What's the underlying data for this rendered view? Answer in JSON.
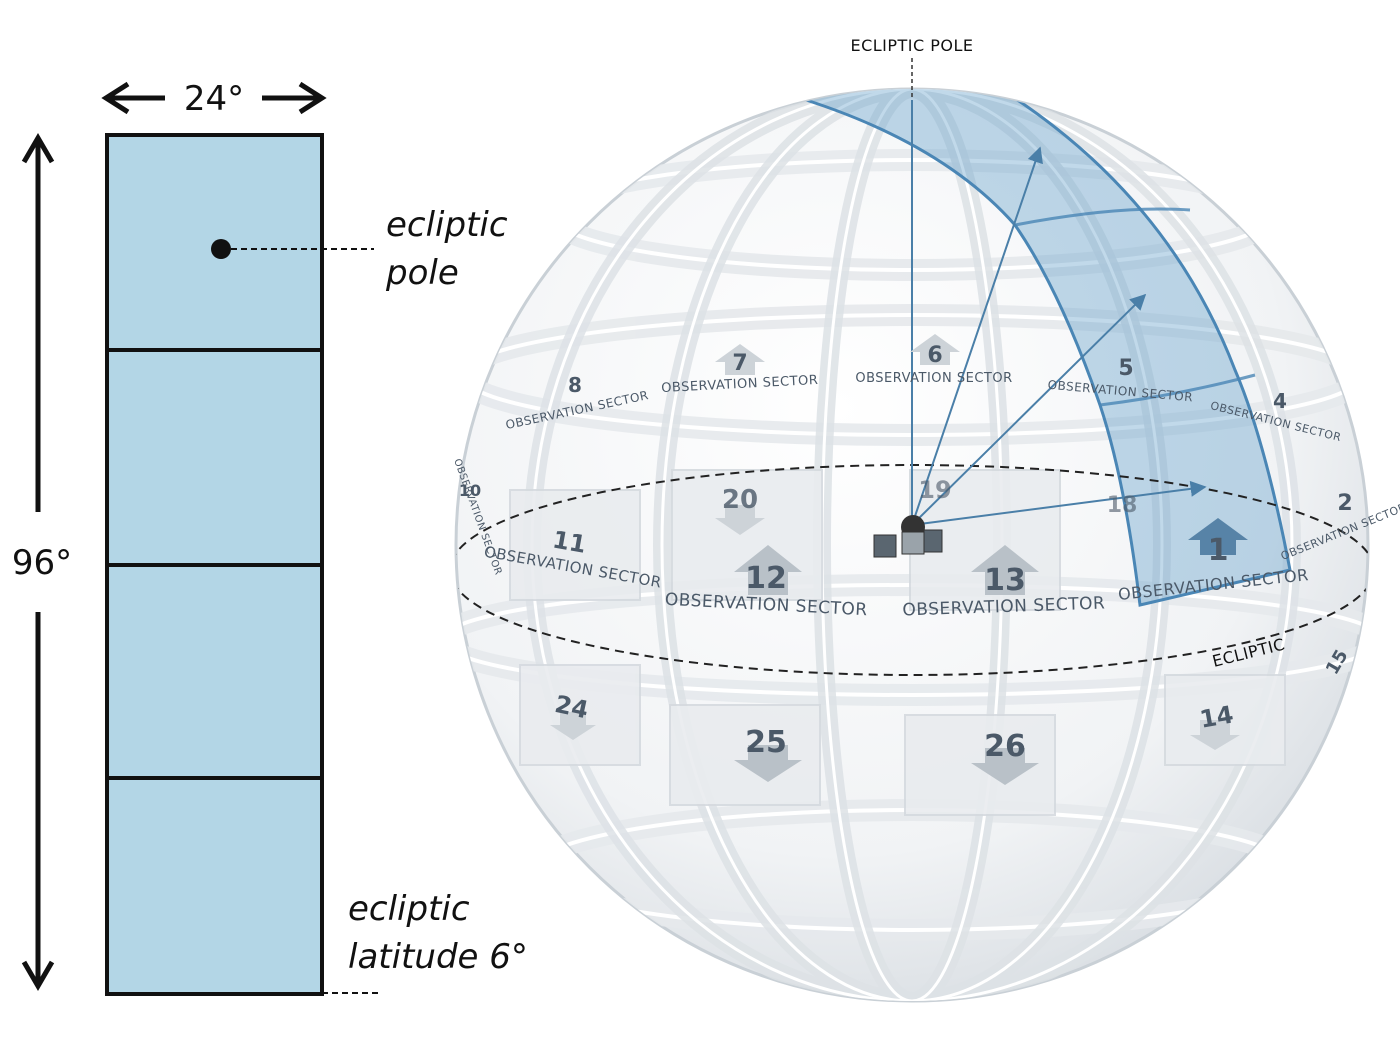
{
  "strip": {
    "width_label": "24°",
    "height_label": "96°",
    "pole_label_line1": "ecliptic",
    "pole_label_line2": "pole",
    "lat_label_line1": "ecliptic",
    "lat_label_line2": "latitude 6°",
    "fill_color": "#b3d6e6",
    "stroke_color": "#111111"
  },
  "sphere": {
    "pole_label": "ECLIPTIC POLE",
    "ecliptic_label": "ECLIPTIC",
    "highlight_color": "#5d9cc9",
    "sector_text": "OBSERVATION SECTOR",
    "sectors": [
      {
        "num": "1",
        "label": "OBSERVATION SECTOR"
      },
      {
        "num": "2",
        "label": "OBSERVATION SECTOR"
      },
      {
        "num": "4",
        "label": "OBSERVATION SECTOR"
      },
      {
        "num": "5",
        "label": "OBSERVATION SECTOR"
      },
      {
        "num": "6",
        "label": "OBSERVATION SECTOR"
      },
      {
        "num": "7",
        "label": "OBSERVATION SECTOR"
      },
      {
        "num": "8",
        "label": "OBSERVATION SECTOR"
      },
      {
        "num": "10",
        "label": "OBSERVATION SECTOR"
      },
      {
        "num": "11",
        "label": "OBSERVATION SECTOR"
      },
      {
        "num": "12",
        "label": "OBSERVATION SECTOR"
      },
      {
        "num": "13",
        "label": "OBSERVATION SECTOR"
      },
      {
        "num": "14",
        "label": ""
      },
      {
        "num": "15",
        "label": ""
      },
      {
        "num": "18",
        "label": ""
      },
      {
        "num": "19",
        "label": ""
      },
      {
        "num": "20",
        "label": ""
      },
      {
        "num": "24",
        "label": ""
      },
      {
        "num": "25",
        "label": ""
      },
      {
        "num": "26",
        "label": ""
      }
    ]
  }
}
